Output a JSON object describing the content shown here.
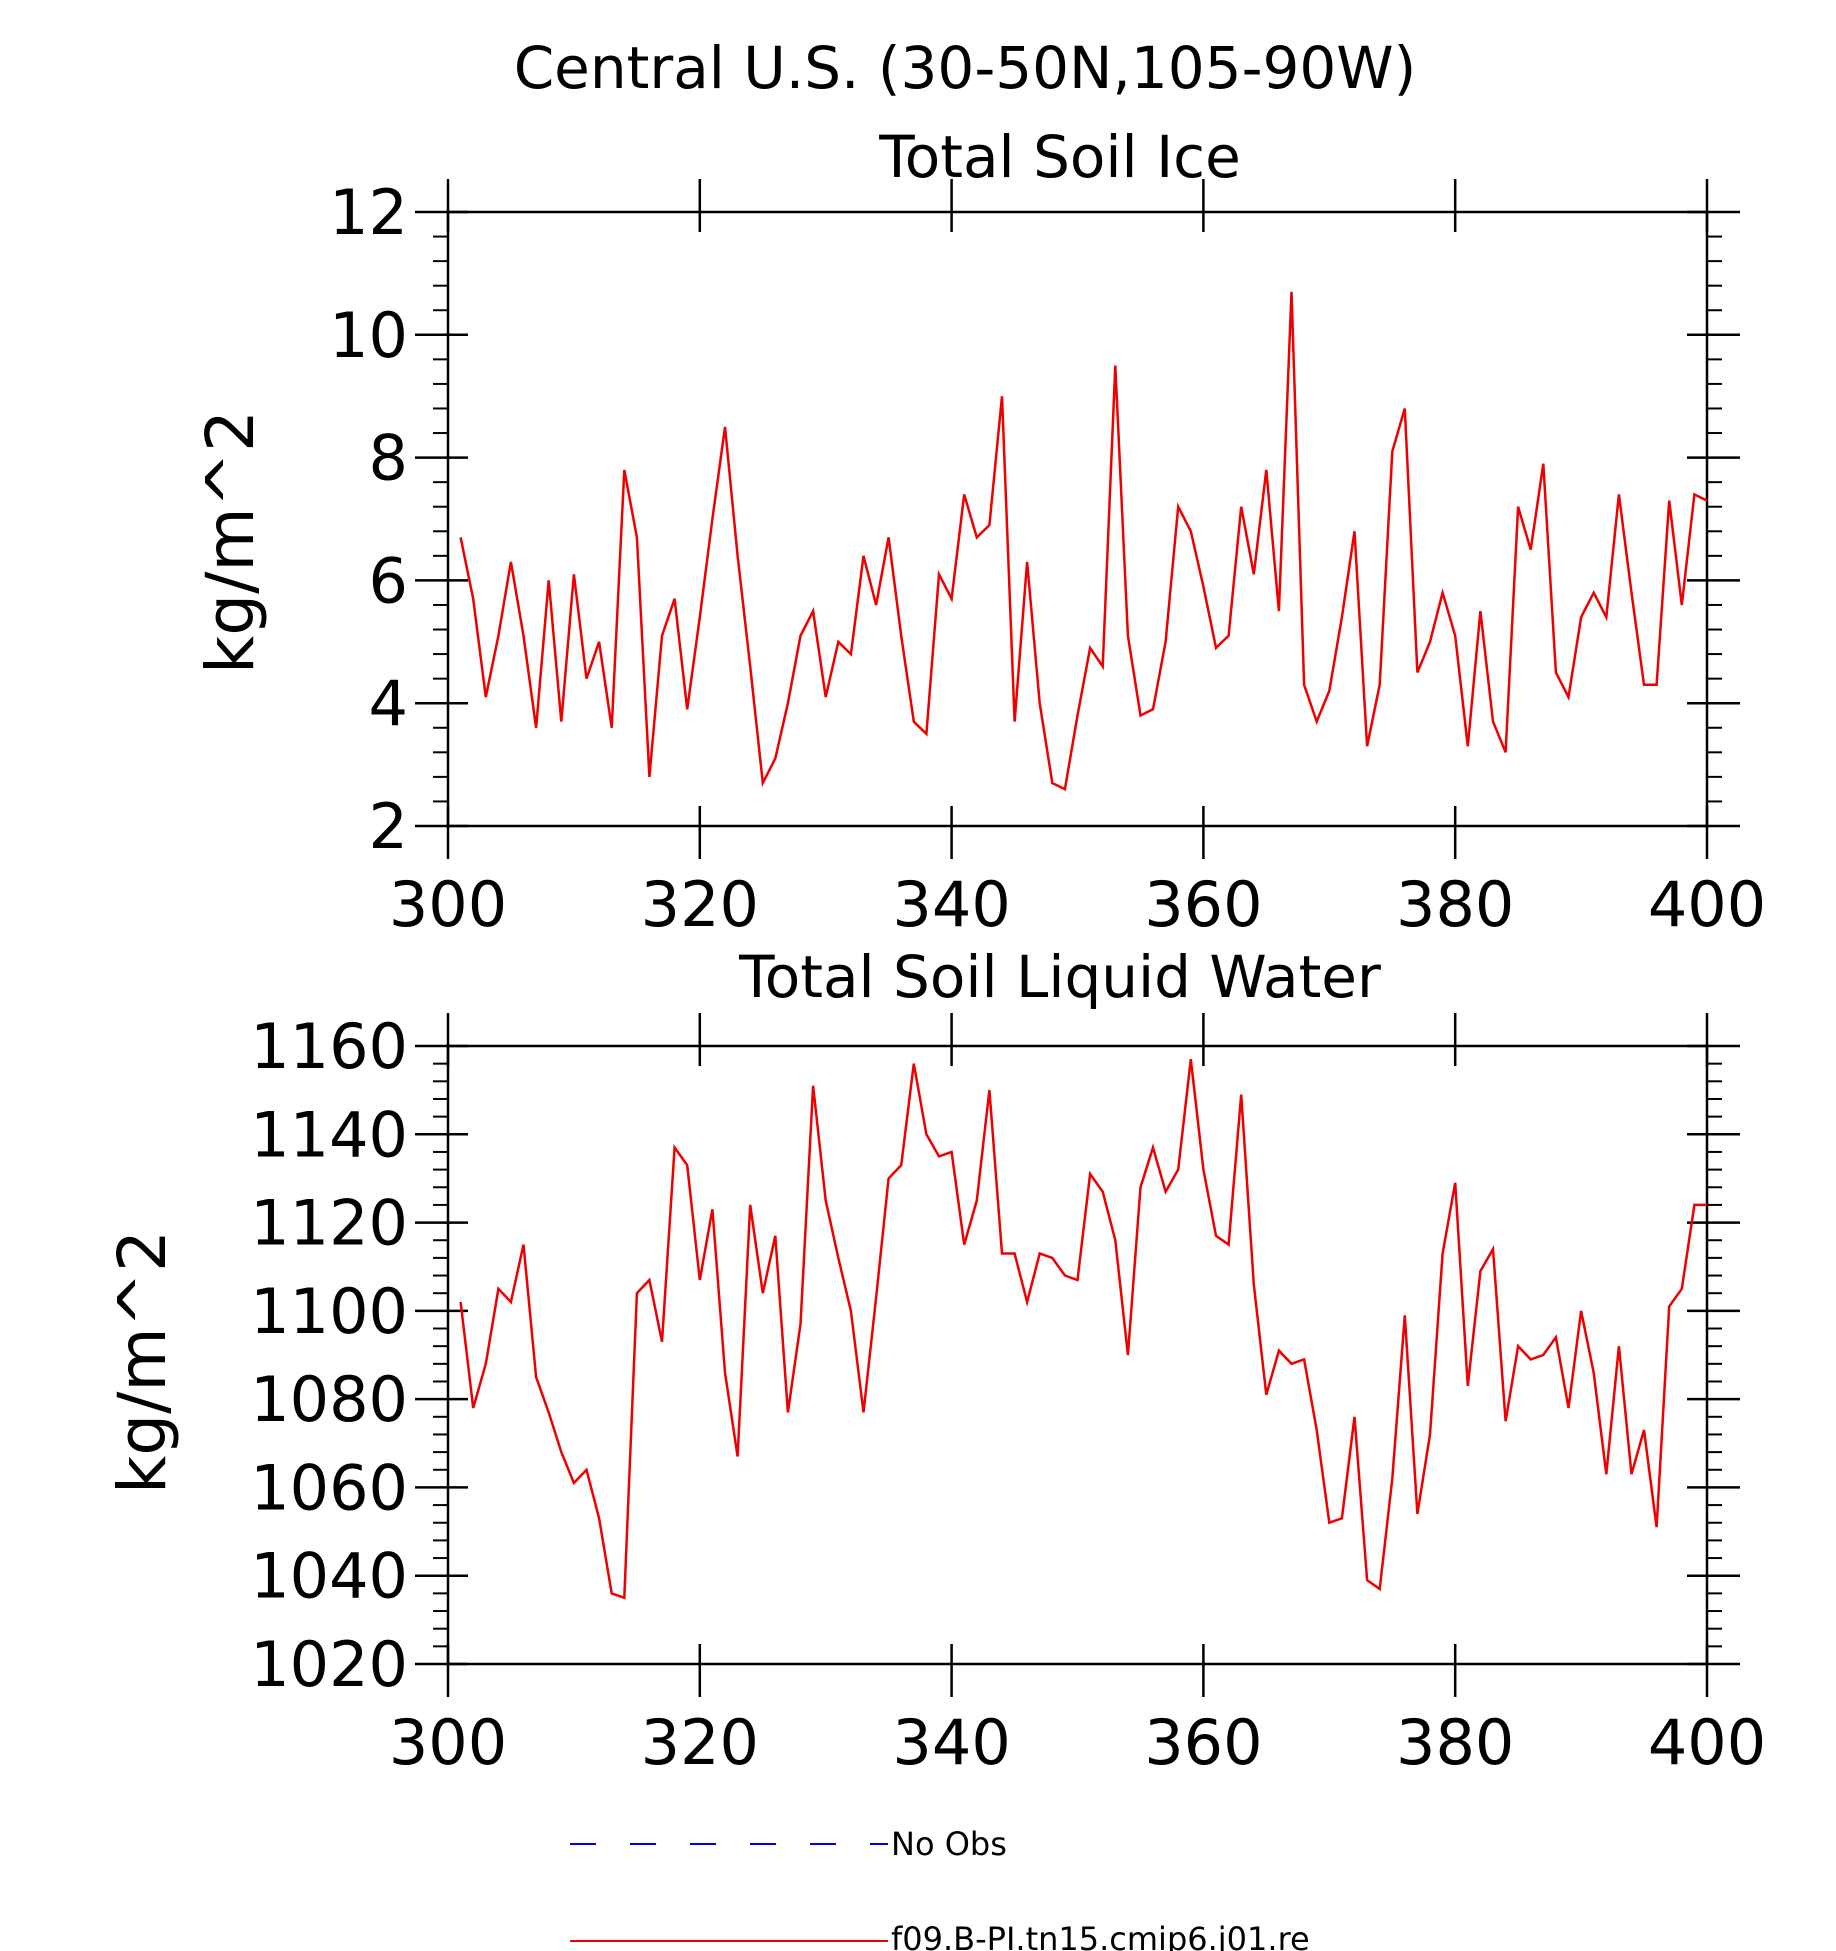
{
  "header": {
    "title": "Central U.S. (30-50N,105-90W)"
  },
  "colors": {
    "model": "#ee0000",
    "obs": "#0000ee",
    "axis": "#000000"
  },
  "legend": {
    "items": [
      {
        "label": "No Obs",
        "style": "dashed",
        "color": "#0000ee"
      },
      {
        "label": "f09.B-PI.tn15.cmip6.j01.re",
        "style": "solid",
        "color": "#ee0000"
      }
    ]
  },
  "chart_data": [
    {
      "type": "line",
      "title": "Total Soil Ice",
      "ylabel": "kg/m^2",
      "xlabel": "",
      "xlim": [
        300,
        400
      ],
      "ylim": [
        2,
        12
      ],
      "xticks": [
        300,
        320,
        340,
        360,
        380,
        400
      ],
      "yticks": [
        2,
        4,
        6,
        8,
        10,
        12
      ],
      "grid": false,
      "x_start": 301,
      "series": [
        {
          "name": "f09.B-PI.tn15.cmip6.j01.re",
          "color": "#ee0000",
          "values": [
            6.7,
            5.7,
            4.1,
            5.1,
            6.3,
            5.1,
            3.6,
            6.0,
            3.7,
            6.1,
            4.4,
            5.0,
            3.6,
            7.8,
            6.7,
            2.8,
            5.1,
            5.7,
            3.9,
            5.4,
            7.0,
            8.5,
            6.4,
            4.6,
            2.7,
            3.1,
            4.0,
            5.1,
            5.5,
            4.1,
            5.0,
            4.8,
            6.4,
            5.6,
            6.7,
            5.1,
            3.7,
            3.5,
            6.1,
            5.7,
            7.4,
            6.7,
            6.9,
            9.0,
            3.7,
            6.3,
            4.0,
            2.7,
            2.6,
            3.8,
            4.9,
            4.6,
            9.5,
            5.1,
            3.8,
            3.9,
            5.0,
            7.2,
            6.8,
            5.9,
            4.9,
            5.1,
            7.2,
            6.1,
            7.8,
            5.5,
            10.7,
            4.3,
            3.7,
            4.2,
            5.4,
            6.8,
            3.3,
            4.3,
            8.1,
            8.8,
            4.5,
            5.0,
            5.8,
            5.1,
            3.3,
            5.5,
            3.7,
            3.2,
            7.2,
            6.5,
            7.9,
            4.5,
            4.1,
            5.4,
            5.8,
            5.4,
            7.4,
            5.8,
            4.3,
            4.3,
            7.3,
            5.6,
            7.4,
            7.3
          ]
        }
      ]
    },
    {
      "type": "line",
      "title": "Total Soil Liquid Water",
      "ylabel": "kg/m^2",
      "xlabel": "",
      "xlim": [
        300,
        400
      ],
      "ylim": [
        1020,
        1160
      ],
      "xticks": [
        300,
        320,
        340,
        360,
        380,
        400
      ],
      "yticks": [
        1020,
        1040,
        1060,
        1080,
        1100,
        1120,
        1140,
        1160
      ],
      "grid": false,
      "x_start": 301,
      "series": [
        {
          "name": "f09.B-PI.tn15.cmip6.j01.re",
          "color": "#ee0000",
          "values": [
            1102,
            1078,
            1088,
            1105,
            1102,
            1115,
            1085,
            1077,
            1068,
            1061,
            1064,
            1053,
            1036,
            1035,
            1104,
            1107,
            1093,
            1137,
            1133,
            1107,
            1123,
            1086,
            1067,
            1124,
            1104,
            1117,
            1077,
            1097,
            1151,
            1125,
            1112,
            1100,
            1077,
            1103,
            1130,
            1133,
            1156,
            1140,
            1135,
            1136,
            1115,
            1125,
            1150,
            1113,
            1113,
            1102,
            1113,
            1112,
            1108,
            1107,
            1131,
            1127,
            1116,
            1090,
            1128,
            1137,
            1127,
            1132,
            1157,
            1132,
            1117,
            1115,
            1149,
            1106,
            1081,
            1091,
            1088,
            1089,
            1073,
            1052,
            1053,
            1076,
            1039,
            1037,
            1062,
            1099,
            1054,
            1072,
            1113,
            1129,
            1083,
            1109,
            1114,
            1075,
            1092,
            1089,
            1090,
            1094,
            1078,
            1100,
            1086,
            1063,
            1092,
            1063,
            1073,
            1051,
            1101,
            1105,
            1124,
            1124
          ]
        }
      ]
    }
  ]
}
